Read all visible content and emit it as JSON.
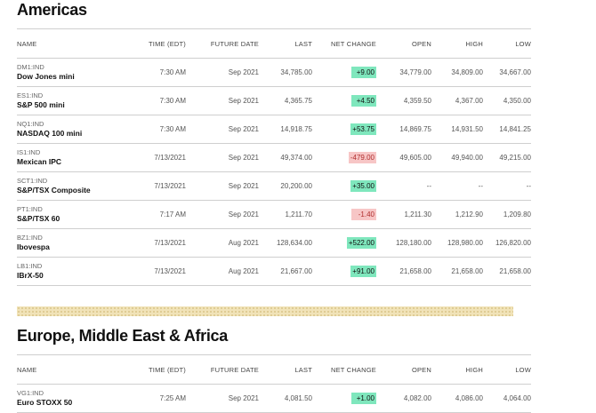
{
  "sections": [
    {
      "title": "Americas",
      "headers": [
        "NAME",
        "TIME (EDT)",
        "FUTURE DATE",
        "LAST",
        "NET CHANGE",
        "OPEN",
        "HIGH",
        "LOW"
      ],
      "rows": [
        {
          "ticker": "DM1:IND",
          "name": "Dow Jones mini",
          "time": "7:30 AM",
          "future": "Sep 2021",
          "last": "34,785.00",
          "change": "+9.00",
          "direction": "up",
          "open": "34,779.00",
          "high": "34,809.00",
          "low": "34,667.00"
        },
        {
          "ticker": "ES1:IND",
          "name": "S&P 500 mini",
          "time": "7:30 AM",
          "future": "Sep 2021",
          "last": "4,365.75",
          "change": "+4.50",
          "direction": "up",
          "open": "4,359.50",
          "high": "4,367.00",
          "low": "4,350.00"
        },
        {
          "ticker": "NQ1:IND",
          "name": "NASDAQ 100 mini",
          "time": "7:30 AM",
          "future": "Sep 2021",
          "last": "14,918.75",
          "change": "+53.75",
          "direction": "up",
          "open": "14,869.75",
          "high": "14,931.50",
          "low": "14,841.25"
        },
        {
          "ticker": "IS1:IND",
          "name": "Mexican IPC",
          "time": "7/13/2021",
          "future": "Sep 2021",
          "last": "49,374.00",
          "change": "-479.00",
          "direction": "down",
          "open": "49,605.00",
          "high": "49,940.00",
          "low": "49,215.00"
        },
        {
          "ticker": "SCT1:IND",
          "name": "S&P/TSX Composite",
          "time": "7/13/2021",
          "future": "Sep 2021",
          "last": "20,200.00",
          "change": "+35.00",
          "direction": "up",
          "open": "--",
          "high": "--",
          "low": "--"
        },
        {
          "ticker": "PT1:IND",
          "name": "S&P/TSX 60",
          "time": "7:17 AM",
          "future": "Sep 2021",
          "last": "1,211.70",
          "change": "-1.40",
          "direction": "down",
          "open": "1,211.30",
          "high": "1,212.90",
          "low": "1,209.80"
        },
        {
          "ticker": "BZ1:IND",
          "name": "Ibovespa",
          "time": "7/13/2021",
          "future": "Aug 2021",
          "last": "128,634.00",
          "change": "+522.00",
          "direction": "up",
          "open": "128,180.00",
          "high": "128,980.00",
          "low": "126,820.00"
        },
        {
          "ticker": "LB1:IND",
          "name": "IBrX-50",
          "time": "7/13/2021",
          "future": "Aug 2021",
          "last": "21,667.00",
          "change": "+91.00",
          "direction": "up",
          "open": "21,658.00",
          "high": "21,658.00",
          "low": "21,658.00"
        }
      ]
    },
    {
      "title": "Europe, Middle East & Africa",
      "headers": [
        "NAME",
        "TIME (EDT)",
        "FUTURE DATE",
        "LAST",
        "NET CHANGE",
        "OPEN",
        "HIGH",
        "LOW"
      ],
      "rows": [
        {
          "ticker": "VG1:IND",
          "name": "Euro STOXX 50",
          "time": "7:25 AM",
          "future": "Sep 2021",
          "last": "4,081.50",
          "change": "+1.00",
          "direction": "up",
          "open": "4,082.00",
          "high": "4,086.00",
          "low": "4,064.00"
        }
      ]
    }
  ],
  "colors": {
    "up": "#7fe7bd",
    "down": "#f7c6c6",
    "divider": "#f1e3b8"
  }
}
